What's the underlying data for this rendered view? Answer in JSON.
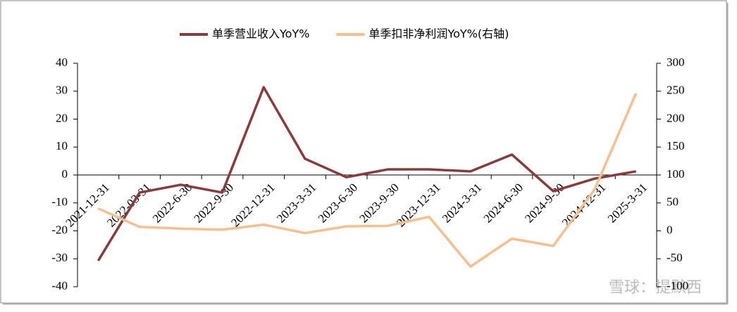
{
  "chart_data": {
    "type": "line",
    "categories": [
      "2021-12-31",
      "2022-03-31",
      "2022-6-30",
      "2022-9-30",
      "2022-12-31",
      "2023-3-31",
      "2023-6-30",
      "2023-9-30",
      "2023-12-31",
      "2024-3-31",
      "2024-6-30",
      "2024-9-30",
      "2024-12-31",
      "2025-3-31"
    ],
    "series": [
      {
        "name": "单季营业收入YoY%",
        "color": "#8b3a3a",
        "values": [
          -30.7,
          -6.3,
          -3.5,
          -6.3,
          31.4,
          5.8,
          -0.8,
          2.0,
          2.0,
          1.3,
          7.3,
          -5.8,
          -1.3,
          1.3
        ]
      },
      {
        "name": "单季扣非净利润YoY%(右轴)",
        "color": "#f7bf8e",
        "axis": "y2",
        "values": [
          40,
          7,
          4,
          2,
          11,
          -4,
          8,
          9,
          25,
          -64,
          -14,
          -27,
          74,
          246
        ]
      }
    ],
    "ylim": [
      -40,
      40
    ],
    "yticks": [
      -40,
      -30,
      -20,
      -10,
      0,
      10,
      20,
      30,
      40
    ],
    "y2lim": [
      -100,
      300
    ],
    "y2ticks": [
      -100,
      -50,
      0,
      50,
      100,
      150,
      200,
      250,
      300
    ],
    "legend": "top",
    "watermark": "雪球：提默西"
  }
}
